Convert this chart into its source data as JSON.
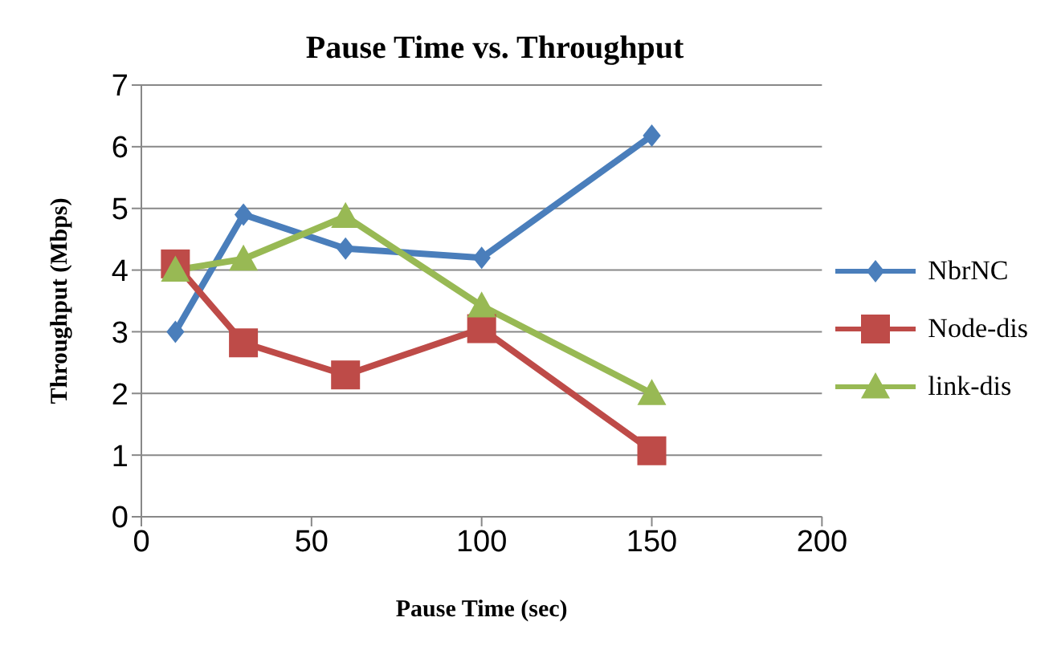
{
  "chart_data": {
    "type": "line",
    "title": "Pause Time vs.  Throughput",
    "xlabel": "Pause Time (sec)",
    "ylabel": "Throughput (Mbps)",
    "x": [
      10,
      30,
      60,
      100,
      150
    ],
    "series": [
      {
        "name": "NbrNC",
        "color": "#4a7ebb",
        "marker": "diamond",
        "values": [
          3.0,
          4.9,
          4.35,
          4.2,
          6.18
        ]
      },
      {
        "name": "Node-dis",
        "color": "#be4b48",
        "marker": "square",
        "values": [
          4.1,
          2.82,
          2.3,
          3.05,
          1.07
        ]
      },
      {
        "name": "link-dis",
        "color": "#98b954",
        "marker": "triangle",
        "values": [
          4.0,
          4.18,
          4.87,
          3.42,
          2.0
        ]
      }
    ],
    "xlim": [
      0,
      200
    ],
    "xticks": [
      0,
      50,
      100,
      150,
      200
    ],
    "ylim": [
      0,
      7
    ],
    "yticks": [
      0,
      1,
      2,
      3,
      4,
      5,
      6,
      7
    ],
    "grid": "y",
    "legend": "right",
    "line_style": "solid"
  }
}
